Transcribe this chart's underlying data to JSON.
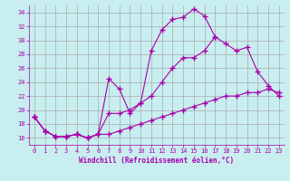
{
  "xlabel": "Windchill (Refroidissement éolien,°C)",
  "bg_color": "#c8eef0",
  "line_color": "#aa00aa",
  "grid_color": "#aaaaaa",
  "xmin": -0.5,
  "xmax": 23.5,
  "ymin": 15.0,
  "ymax": 35.0,
  "yticks": [
    16,
    18,
    20,
    22,
    24,
    26,
    28,
    30,
    32,
    34
  ],
  "xticks": [
    0,
    1,
    2,
    3,
    4,
    5,
    6,
    7,
    8,
    9,
    10,
    11,
    12,
    13,
    14,
    15,
    16,
    17,
    18,
    19,
    20,
    21,
    22,
    23
  ],
  "line1_x": [
    0,
    1,
    2,
    3,
    4,
    5,
    6,
    7,
    8,
    9,
    10,
    11,
    12,
    13,
    14,
    15,
    16,
    17,
    18,
    19,
    20,
    21,
    22,
    23
  ],
  "line1_y": [
    19,
    17,
    16.2,
    16.2,
    16.5,
    16.0,
    16.5,
    24.5,
    23.0,
    19.5,
    21.0,
    28.5,
    31.5,
    33.0,
    33.3,
    34.5,
    33.5,
    30.5,
    29.5,
    28.5,
    29.0,
    25.5,
    23.5,
    22.0
  ],
  "line2_x": [
    0,
    1,
    2,
    3,
    4,
    5,
    6,
    7,
    8,
    9,
    10,
    11,
    12,
    13,
    14,
    15,
    16,
    17,
    18,
    19,
    20,
    21,
    22,
    23
  ],
  "line2_y": [
    19,
    17,
    16.2,
    16.2,
    16.5,
    16.0,
    16.5,
    19.5,
    19.5,
    20.0,
    21.0,
    22.0,
    24.0,
    26.0,
    27.5,
    27.5,
    28.5,
    30.5,
    null,
    null,
    null,
    null,
    null,
    null
  ],
  "line3_x": [
    0,
    1,
    2,
    3,
    4,
    5,
    6,
    7,
    8,
    9,
    10,
    11,
    12,
    13,
    14,
    15,
    16,
    17,
    18,
    19,
    20,
    21,
    22,
    23
  ],
  "line3_y": [
    19,
    17,
    16.2,
    16.2,
    16.5,
    16.0,
    16.5,
    16.5,
    17.0,
    17.5,
    18.0,
    18.5,
    19.0,
    19.5,
    20.0,
    20.5,
    21.0,
    21.5,
    22.0,
    22.0,
    22.5,
    22.5,
    23.0,
    22.5
  ]
}
